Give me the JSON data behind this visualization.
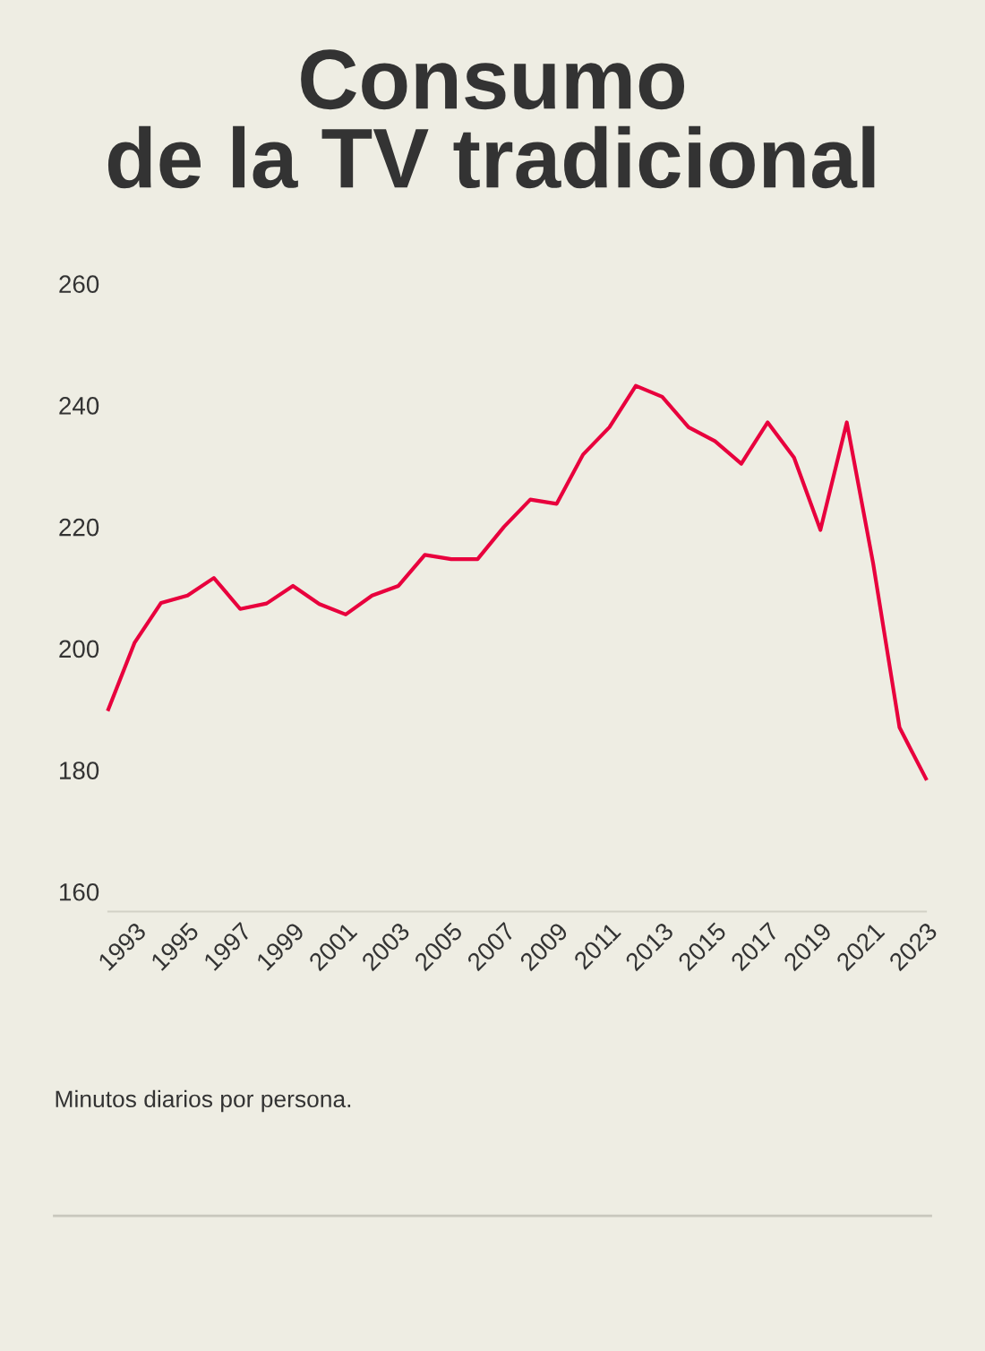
{
  "chart_data": {
    "type": "line",
    "title": "Consumo\nde la TV tradicional",
    "x": [
      1992,
      1993,
      1994,
      1995,
      1996,
      1997,
      1998,
      1999,
      2000,
      2001,
      2002,
      2003,
      2004,
      2005,
      2006,
      2007,
      2008,
      2009,
      2010,
      2011,
      2012,
      2013,
      2014,
      2015,
      2016,
      2017,
      2018,
      2019,
      2020,
      2021,
      2022,
      2023
    ],
    "series": [
      {
        "color": "#e8003d",
        "values": [
          190,
          201,
          207.5,
          208.7,
          211.6,
          206.5,
          207.4,
          210.3,
          207.3,
          205.6,
          208.7,
          210.3,
          215.4,
          214.7,
          214.7,
          220,
          224.5,
          223.8,
          231.9,
          236.4,
          243.2,
          241.4,
          236.4,
          234.1,
          230.4,
          237.2,
          231.4,
          219.5,
          237.2,
          214,
          187,
          178.6
        ]
      }
    ],
    "xlim": [
      1992,
      2023
    ],
    "xticks": [
      1993,
      1995,
      1997,
      1999,
      2001,
      2003,
      2005,
      2007,
      2009,
      2011,
      2013,
      2015,
      2017,
      2019,
      2021,
      2023
    ],
    "ylim": [
      160,
      260
    ],
    "yticks": [
      160,
      180,
      200,
      220,
      240,
      260
    ],
    "grid": false,
    "marker": "none",
    "line_style": "solid",
    "annotations": [
      "Minutos diarios por persona."
    ]
  }
}
